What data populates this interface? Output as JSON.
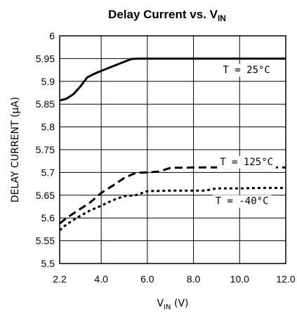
{
  "chart_data": {
    "type": "line",
    "title": {
      "main": "Delay Current vs. V",
      "sub": "IN"
    },
    "xlabel": {
      "main": "V",
      "sub": "IN",
      "unit": " (V)"
    },
    "ylabel": "DELAY CURRENT (µA)",
    "xlim": [
      2.2,
      12.0
    ],
    "ylim": [
      5.5,
      6.0
    ],
    "x_ticks": [
      "2.2",
      "4.0",
      "6.0",
      "8.0",
      "10.0",
      "12.0"
    ],
    "y_ticks": [
      "5.5",
      "5.55",
      "5.6",
      "5.65",
      "5.7",
      "5.75",
      "5.8",
      "5.85",
      "5.9",
      "5.95",
      "6"
    ],
    "grid": true,
    "series": [
      {
        "name": "T = 25°C",
        "style": "solid",
        "x": [
          2.2,
          2.5,
          2.8,
          3.1,
          3.4,
          3.8,
          4.3,
          4.8,
          5.3,
          5.6,
          6.0,
          7.0,
          8.0,
          9.0,
          10.0,
          11.0,
          12.0
        ],
        "y": [
          5.858,
          5.862,
          5.872,
          5.889,
          5.909,
          5.919,
          5.929,
          5.939,
          5.949,
          5.95,
          5.95,
          5.95,
          5.95,
          5.95,
          5.95,
          5.95,
          5.95
        ]
      },
      {
        "name": "T = 125°C",
        "style": "dashed",
        "x": [
          2.2,
          2.5,
          3.0,
          3.5,
          4.0,
          4.5,
          5.0,
          5.5,
          6.0,
          6.5,
          7.0,
          8.0,
          9.0,
          10.0,
          11.0,
          12.0
        ],
        "y": [
          5.588,
          5.6,
          5.617,
          5.633,
          5.655,
          5.671,
          5.688,
          5.699,
          5.7,
          5.702,
          5.71,
          5.711,
          5.711,
          5.711,
          5.711,
          5.711
        ]
      },
      {
        "name": "T = -40°C",
        "style": "dotted",
        "x": [
          2.2,
          2.5,
          3.0,
          3.5,
          4.0,
          4.5,
          5.0,
          5.5,
          6.0,
          7.0,
          8.0,
          8.5,
          9.0,
          10.0,
          11.0,
          12.0
        ],
        "y": [
          5.573,
          5.586,
          5.602,
          5.616,
          5.627,
          5.639,
          5.648,
          5.65,
          5.659,
          5.66,
          5.66,
          5.66,
          5.665,
          5.665,
          5.666,
          5.666
        ]
      }
    ],
    "annotations": [
      {
        "text": "T = 25°C",
        "x": 10.3,
        "y": 5.926
      },
      {
        "text": "T = 125°C",
        "x": 10.3,
        "y": 5.724
      },
      {
        "text": "T = -40°C",
        "x": 10.1,
        "y": 5.638
      }
    ]
  }
}
